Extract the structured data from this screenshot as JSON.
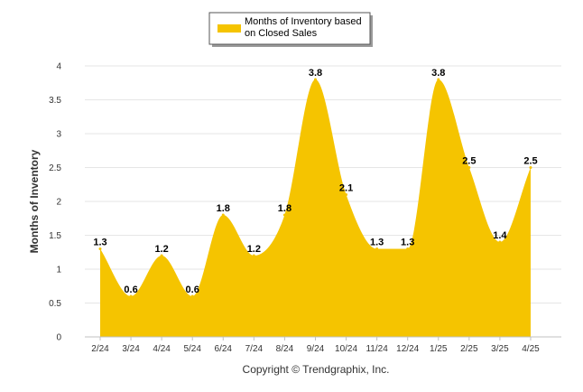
{
  "chart_data": {
    "type": "area",
    "title": "",
    "xlabel": "",
    "ylabel": "Months of Inventory",
    "ylim": [
      0,
      4
    ],
    "yticks": [
      "0",
      "0.5",
      "1",
      "1.5",
      "2",
      "2.5",
      "3",
      "3.5",
      "4"
    ],
    "grid": true,
    "legend_position": "top",
    "categories": [
      "2/24",
      "3/24",
      "4/24",
      "5/24",
      "6/24",
      "7/24",
      "8/24",
      "9/24",
      "10/24",
      "11/24",
      "12/24",
      "1/25",
      "2/25",
      "3/25",
      "4/25"
    ],
    "series": [
      {
        "name": "Months of Inventory based on Closed Sales",
        "legend_lines": [
          "Months of Inventory based",
          "on Closed Sales"
        ],
        "color": "#f5c400",
        "values": [
          1.3,
          0.6,
          1.2,
          0.6,
          1.8,
          1.2,
          1.8,
          3.8,
          2.1,
          1.3,
          1.3,
          3.8,
          2.5,
          1.4,
          2.5
        ],
        "labels": [
          "1.3",
          "0.6",
          "1.2",
          "0.6",
          "1.8",
          "1.2",
          "1.8",
          "3.8",
          "2.1",
          "1.3",
          "1.3",
          "3.8",
          "2.5",
          "1.4",
          "2.5"
        ]
      }
    ]
  },
  "copyright": "Copyright © Trendgraphix, Inc."
}
